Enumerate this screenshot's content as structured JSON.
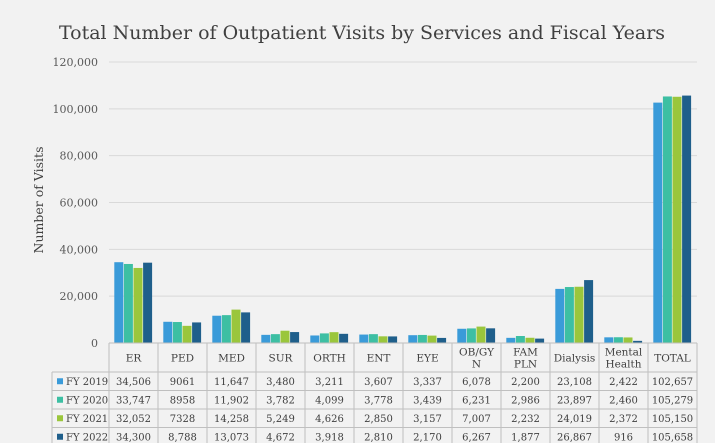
{
  "chart_data": {
    "type": "bar",
    "title": "Total Number of Outpatient Visits by Services and Fiscal Years",
    "ylabel": "Number of Visits",
    "ylim": [
      0,
      120000
    ],
    "yticks": [
      "0",
      "20,000",
      "40,000",
      "60,000",
      "80,000",
      "100,000",
      "120,000"
    ],
    "grid": true,
    "legend_placement": "data-table-left",
    "categories": [
      [
        "ER"
      ],
      [
        "PED"
      ],
      [
        "MED"
      ],
      [
        "SUR"
      ],
      [
        "ORTH"
      ],
      [
        "ENT"
      ],
      [
        "EYE"
      ],
      [
        "OB/GY",
        "N"
      ],
      [
        "FAM",
        "PLN"
      ],
      [
        "Dialysis"
      ],
      [
        "Mental",
        "Health"
      ],
      [
        "TOTAL"
      ]
    ],
    "series": [
      {
        "name": "FY 2019",
        "color": "#3a9bd9",
        "values": [
          34506,
          9061,
          11647,
          3480,
          3211,
          3607,
          3337,
          6078,
          2200,
          23108,
          2422,
          102657
        ],
        "labels": [
          "34,506",
          "9061",
          "11,647",
          "3,480",
          "3,211",
          "3,607",
          "3,337",
          "6,078",
          "2,200",
          "23,108",
          "2,422",
          "102,657"
        ]
      },
      {
        "name": "FY 2020",
        "color": "#3dbfa3",
        "values": [
          33747,
          8958,
          11902,
          3782,
          4099,
          3778,
          3439,
          6231,
          2986,
          23897,
          2460,
          105279
        ],
        "labels": [
          "33,747",
          "8958",
          "11,902",
          "3,782",
          "4,099",
          "3,778",
          "3,439",
          "6,231",
          "2,986",
          "23,897",
          "2,460",
          "105,279"
        ]
      },
      {
        "name": "FY 2021",
        "color": "#9ac63c",
        "values": [
          32052,
          7328,
          14258,
          5249,
          4626,
          2850,
          3157,
          7007,
          2232,
          24019,
          2372,
          105150
        ],
        "labels": [
          "32,052",
          "7328",
          "14,258",
          "5,249",
          "4,626",
          "2,850",
          "3,157",
          "7,007",
          "2,232",
          "24,019",
          "2,372",
          "105,150"
        ]
      },
      {
        "name": "FY 2022",
        "color": "#1f5f8b",
        "values": [
          34300,
          8788,
          13073,
          4672,
          3918,
          2810,
          2170,
          6267,
          1877,
          26867,
          916,
          105658
        ],
        "labels": [
          "34,300",
          "8,788",
          "13,073",
          "4,672",
          "3,918",
          "2,810",
          "2,170",
          "6,267",
          "1,877",
          "26,867",
          "916",
          "105,658"
        ]
      }
    ]
  }
}
